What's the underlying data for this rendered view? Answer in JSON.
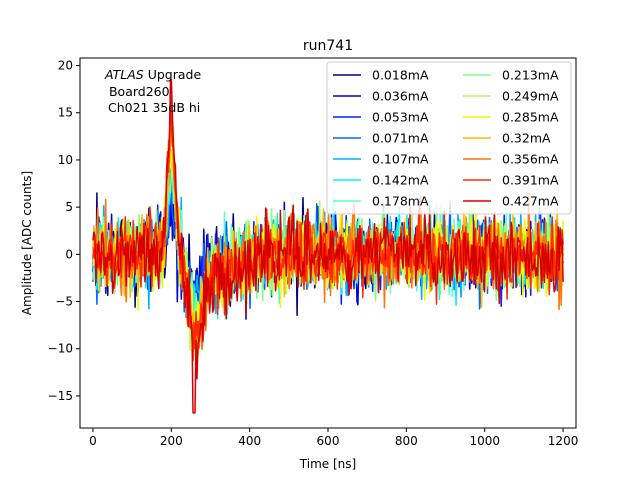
{
  "chart_data": {
    "type": "line",
    "title": "run741",
    "xlabel": "Time [ns]",
    "ylabel": "Amplitude [ADC counts]",
    "xlim": [
      -33,
      1233
    ],
    "ylim": [
      -18.4,
      20.8
    ],
    "xticks": [
      0,
      200,
      400,
      600,
      800,
      1000,
      1200
    ],
    "yticks": [
      -15,
      -10,
      -5,
      0,
      5,
      10,
      15,
      20
    ],
    "annotation": {
      "title_italic": "ATLAS",
      "title_rest": " Upgrade",
      "line2": " Board260",
      "line3": "Ch021 35dB hi"
    },
    "legend_position": "upper right",
    "legend_columns": 2,
    "series": [
      {
        "name": "0.018mA",
        "color": "#00007f"
      },
      {
        "name": "0.036mA",
        "color": "#0000d7"
      },
      {
        "name": "0.053mA",
        "color": "#0020ff"
      },
      {
        "name": "0.071mA",
        "color": "#0068ff"
      },
      {
        "name": "0.107mA",
        "color": "#00b0ff"
      },
      {
        "name": "0.142mA",
        "color": "#00f4ff"
      },
      {
        "name": "0.178mA",
        "color": "#5affd0"
      },
      {
        "name": "0.213mA",
        "color": "#80ff80"
      },
      {
        "name": "0.249mA",
        "color": "#b0ff46"
      },
      {
        "name": "0.285mA",
        "color": "#f4f802"
      },
      {
        "name": "0.32mA",
        "color": "#ffb900"
      },
      {
        "name": "0.356mA",
        "color": "#ff7300"
      },
      {
        "name": "0.391mA",
        "color": "#ff2800"
      },
      {
        "name": "0.427mA",
        "color": "#d70000"
      }
    ],
    "sample_count": 480,
    "time_range": [
      0,
      1200
    ],
    "pulse": {
      "peak_time": 200,
      "peak_value": 18.5,
      "min_time": 258,
      "min_value": -16.8,
      "noise_sigma": 2.0,
      "noise_max": 6.5
    }
  }
}
